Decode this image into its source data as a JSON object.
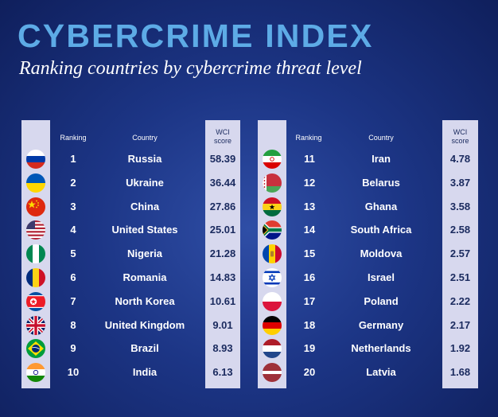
{
  "title": "CYBERCRIME INDEX",
  "subtitle": "Ranking countries by cybercrime threat level",
  "headers": {
    "ranking": "Ranking",
    "country": "Country",
    "score_line1": "WCI",
    "score_line2": "score"
  },
  "chart_data": {
    "type": "table",
    "title": "CYBERCRIME INDEX",
    "subtitle": "Ranking countries by cybercrime threat level",
    "columns": [
      "Ranking",
      "Country",
      "WCI score"
    ],
    "rows": [
      {
        "rank": "1",
        "country": "Russia",
        "score": "58.39",
        "flag": "russia-flag"
      },
      {
        "rank": "2",
        "country": "Ukraine",
        "score": "36.44",
        "flag": "ukraine-flag"
      },
      {
        "rank": "3",
        "country": "China",
        "score": "27.86",
        "flag": "china-flag"
      },
      {
        "rank": "4",
        "country": "United States",
        "score": "25.01",
        "flag": "united-states-flag"
      },
      {
        "rank": "5",
        "country": "Nigeria",
        "score": "21.28",
        "flag": "nigeria-flag"
      },
      {
        "rank": "6",
        "country": "Romania",
        "score": "14.83",
        "flag": "romania-flag"
      },
      {
        "rank": "7",
        "country": "North Korea",
        "score": "10.61",
        "flag": "north-korea-flag"
      },
      {
        "rank": "8",
        "country": "United Kingdom",
        "score": "9.01",
        "flag": "united-kingdom-flag"
      },
      {
        "rank": "9",
        "country": "Brazil",
        "score": "8.93",
        "flag": "brazil-flag"
      },
      {
        "rank": "10",
        "country": "India",
        "score": "6.13",
        "flag": "india-flag"
      },
      {
        "rank": "11",
        "country": "Iran",
        "score": "4.78",
        "flag": "iran-flag"
      },
      {
        "rank": "12",
        "country": "Belarus",
        "score": "3.87",
        "flag": "belarus-flag"
      },
      {
        "rank": "13",
        "country": "Ghana",
        "score": "3.58",
        "flag": "ghana-flag"
      },
      {
        "rank": "14",
        "country": "South Africa",
        "score": "2.58",
        "flag": "south-africa-flag"
      },
      {
        "rank": "15",
        "country": "Moldova",
        "score": "2.57",
        "flag": "moldova-flag"
      },
      {
        "rank": "16",
        "country": "Israel",
        "score": "2.51",
        "flag": "israel-flag"
      },
      {
        "rank": "17",
        "country": "Poland",
        "score": "2.22",
        "flag": "poland-flag"
      },
      {
        "rank": "18",
        "country": "Germany",
        "score": "2.17",
        "flag": "germany-flag"
      },
      {
        "rank": "19",
        "country": "Netherlands",
        "score": "1.92",
        "flag": "netherlands-flag"
      },
      {
        "rank": "20",
        "country": "Latvia",
        "score": "1.68",
        "flag": "latvia-flag"
      }
    ]
  }
}
